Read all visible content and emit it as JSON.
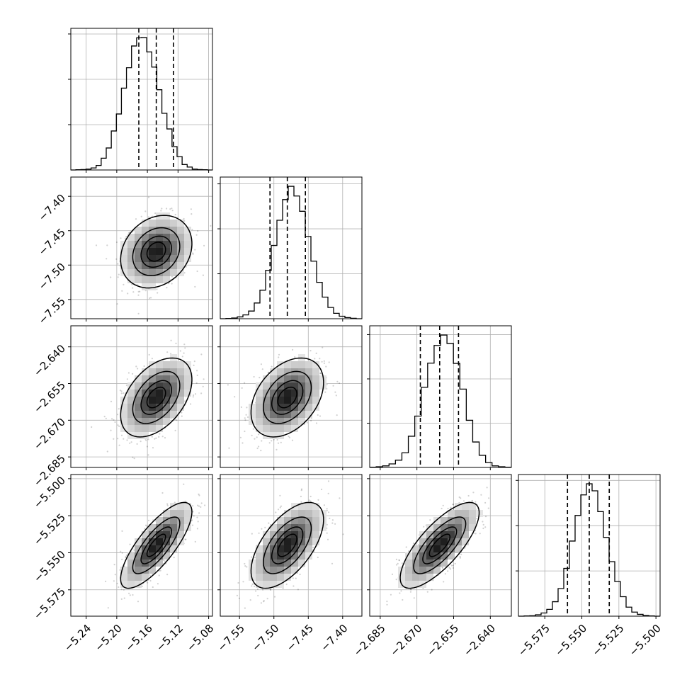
{
  "chart_data": {
    "type": "corner",
    "parameters": [
      {
        "lim": [
          -5.26,
          -5.075
        ],
        "ticks": [
          -5.24,
          -5.2,
          -5.16,
          -5.12,
          -5.08
        ],
        "tick_labels": [
          "−5.24",
          "−5.20",
          "−5.16",
          "−5.12",
          "−5.08"
        ],
        "quantiles": [
          -5.1712,
          -5.1484,
          -5.126
        ]
      },
      {
        "lim": [
          -7.578,
          -7.372
        ],
        "ticks": [
          -7.55,
          -7.5,
          -7.45,
          -7.4
        ],
        "tick_labels": [
          "−7.55",
          "−7.50",
          "−7.45",
          "−7.40"
        ],
        "quantiles": [
          -7.5057,
          -7.4805,
          -7.4542
        ]
      },
      {
        "lim": [
          -2.6893,
          -2.6314
        ],
        "ticks": [
          -2.685,
          -2.67,
          -2.655,
          -2.64
        ],
        "tick_labels": [
          "−2.685",
          "−2.670",
          "−2.655",
          "−2.640"
        ],
        "quantiles": [
          -2.6686,
          -2.6607,
          -2.653
        ]
      },
      {
        "lim": [
          -5.5928,
          -5.4972
        ],
        "ticks": [
          -5.575,
          -5.55,
          -5.525,
          -5.5
        ],
        "tick_labels": [
          "−5.575",
          "−5.550",
          "−5.525",
          "−5.500"
        ],
        "quantiles": [
          -5.5597,
          -5.545,
          -5.5315
        ]
      }
    ],
    "histograms": [
      [
        0,
        1,
        2,
        4,
        9,
        20,
        52,
        97,
        172,
        247,
        361,
        451,
        547,
        583,
        584,
        521,
        454,
        354,
        250,
        181,
        103,
        59,
        24,
        13,
        4,
        2,
        1,
        0
      ],
      [
        0,
        1,
        3,
        8,
        17,
        34,
        70,
        127,
        215,
        326,
        438,
        530,
        589,
        546,
        478,
        366,
        256,
        162,
        96,
        50,
        24,
        11,
        5,
        2,
        0
      ],
      [
        1,
        3,
        7,
        16,
        33,
        66,
        141,
        232,
        362,
        471,
        551,
        598,
        560,
        470,
        354,
        213,
        115,
        55,
        22,
        7,
        3,
        1
      ],
      [
        0,
        1,
        2,
        6,
        14,
        30,
        64,
        122,
        211,
        332,
        445,
        536,
        585,
        554,
        462,
        348,
        241,
        153,
        86,
        40,
        18,
        8,
        3,
        1,
        0
      ]
    ],
    "pairs": [
      {
        "row": 1,
        "col": 0,
        "mean": [
          -5.1484,
          -7.4805
        ],
        "sd": [
          0.0225,
          0.0255
        ],
        "rho": 0.22
      },
      {
        "row": 2,
        "col": 0,
        "mean": [
          -5.1484,
          -2.6607
        ],
        "sd": [
          0.0225,
          0.0078
        ],
        "rho": 0.45
      },
      {
        "row": 2,
        "col": 1,
        "mean": [
          -7.4805,
          -2.6607
        ],
        "sd": [
          0.0255,
          0.0078
        ],
        "rho": 0.38
      },
      {
        "row": 3,
        "col": 0,
        "mean": [
          -5.1484,
          -5.545
        ],
        "sd": [
          0.0225,
          0.014
        ],
        "rho": 0.78
      },
      {
        "row": 3,
        "col": 1,
        "mean": [
          -7.4805,
          -5.545
        ],
        "sd": [
          0.0255,
          0.014
        ],
        "rho": 0.6
      },
      {
        "row": 3,
        "col": 2,
        "mean": [
          -2.6607,
          -5.545
        ],
        "sd": [
          0.0078,
          0.014
        ],
        "rho": 0.76
      }
    ],
    "contour_levels_sigma": [
      0.5,
      1.0,
      1.5,
      2.0
    ],
    "grid": true
  }
}
